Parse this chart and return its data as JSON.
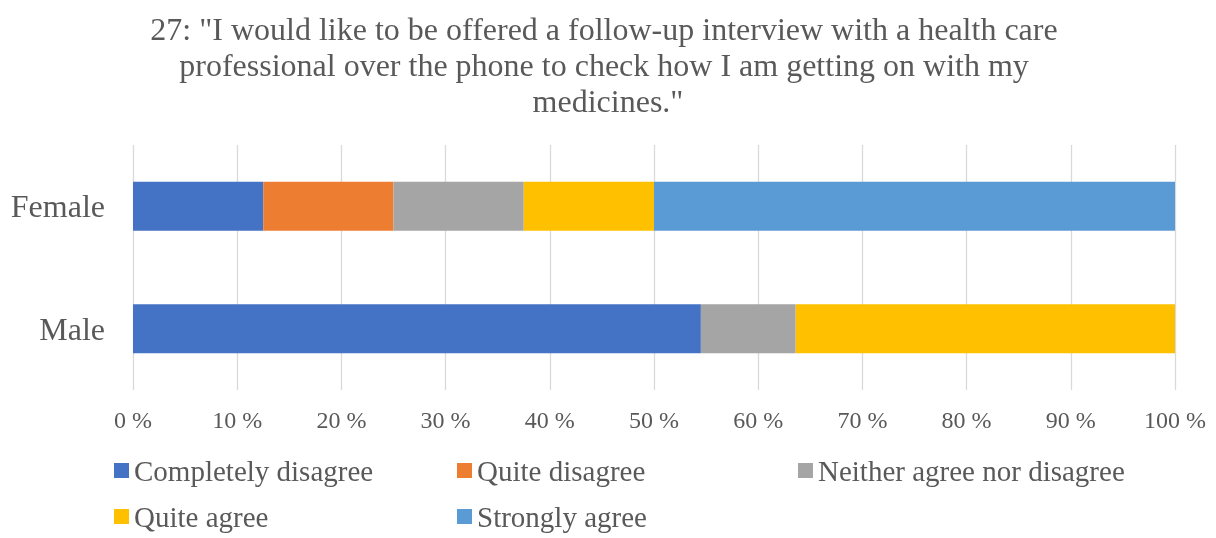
{
  "chart_data": {
    "type": "bar",
    "title": "27: \"I would like to be offered a follow-up interview with a health care professional over the phone to check how I am getting on with my medicines.\"",
    "categories": [
      "Female",
      "Male"
    ],
    "orientation": "horizontal",
    "stacked": true,
    "series": [
      {
        "name": "Completely disagree",
        "color": "#4472c4",
        "values": [
          12.5,
          54.5
        ]
      },
      {
        "name": "Quite disagree",
        "color": "#ed7d31",
        "values": [
          12.5,
          0
        ]
      },
      {
        "name": "Neither agree nor disagree",
        "color": "#a5a5a5",
        "values": [
          12.5,
          9.1
        ]
      },
      {
        "name": "Quite agree",
        "color": "#ffc000",
        "values": [
          12.5,
          36.4
        ]
      },
      {
        "name": "Strongly agree",
        "color": "#5b9bd5",
        "values": [
          50,
          0
        ]
      }
    ],
    "xlim": [
      0,
      100
    ],
    "xticks": [
      {
        "value": 0,
        "label": "0 %"
      },
      {
        "value": 10,
        "label": "10 %"
      },
      {
        "value": 20,
        "label": "20 %"
      },
      {
        "value": 30,
        "label": "30 %"
      },
      {
        "value": 40,
        "label": "40 %"
      },
      {
        "value": 50,
        "label": "50 %"
      },
      {
        "value": 60,
        "label": "60 %"
      },
      {
        "value": 70,
        "label": "70 %"
      },
      {
        "value": 80,
        "label": "80 %"
      },
      {
        "value": 90,
        "label": "90 %"
      },
      {
        "value": 100,
        "label": "100 %"
      }
    ],
    "grid": "x",
    "legend": "bottom"
  }
}
